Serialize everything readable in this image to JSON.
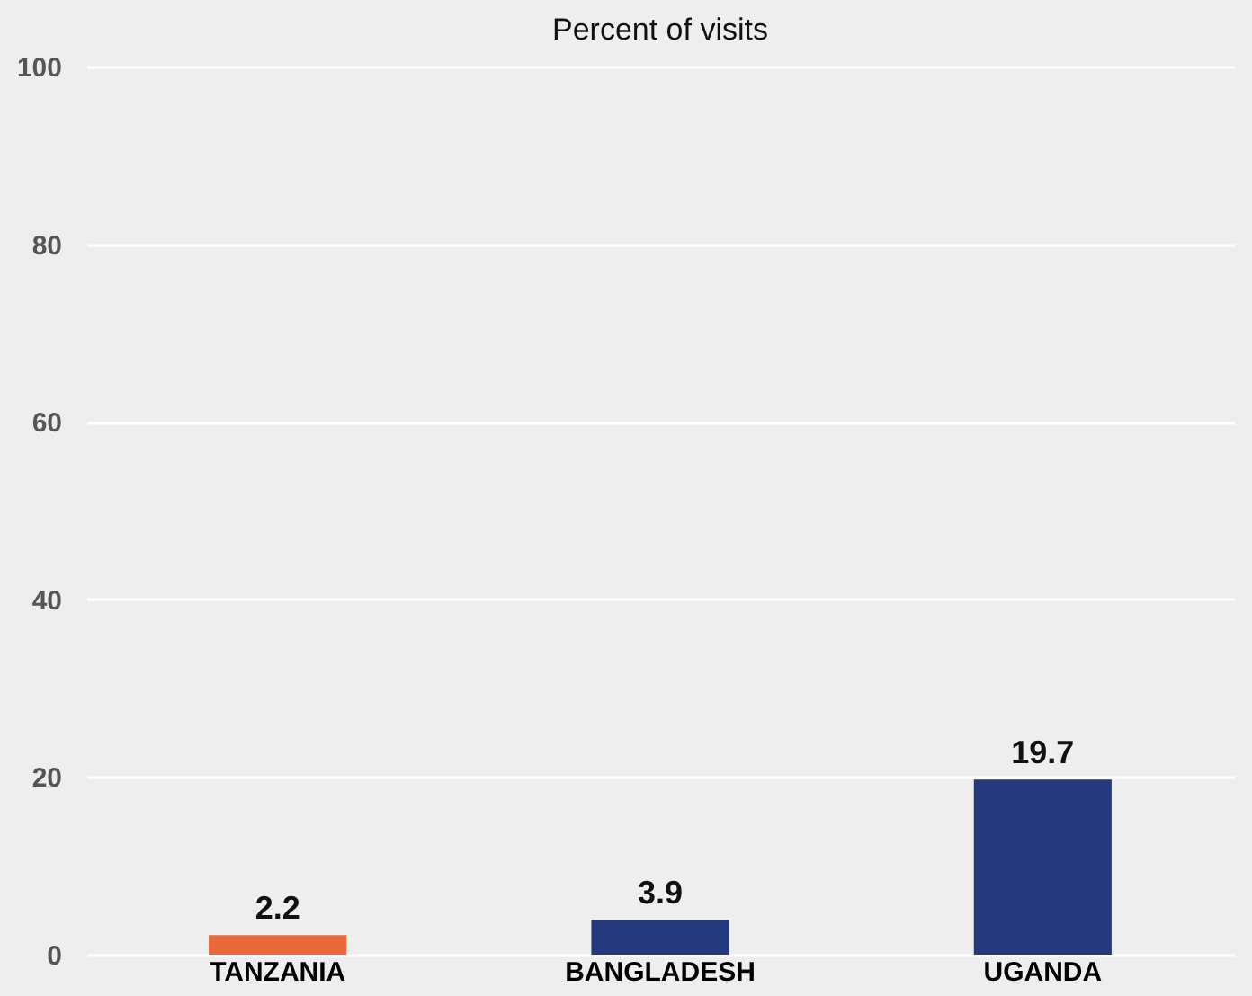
{
  "chart_data": {
    "type": "bar",
    "title": "Percent of visits",
    "categories": [
      "TANZANIA",
      "BANGLADESH",
      "UGANDA"
    ],
    "values": [
      2.2,
      3.9,
      19.7
    ],
    "colors": [
      "#e8693a",
      "#253a7e",
      "#253a7e"
    ],
    "ylim": [
      0,
      100
    ],
    "yticks": [
      0,
      20,
      40,
      60,
      80,
      100
    ],
    "grid": "y",
    "data_labels": true
  }
}
